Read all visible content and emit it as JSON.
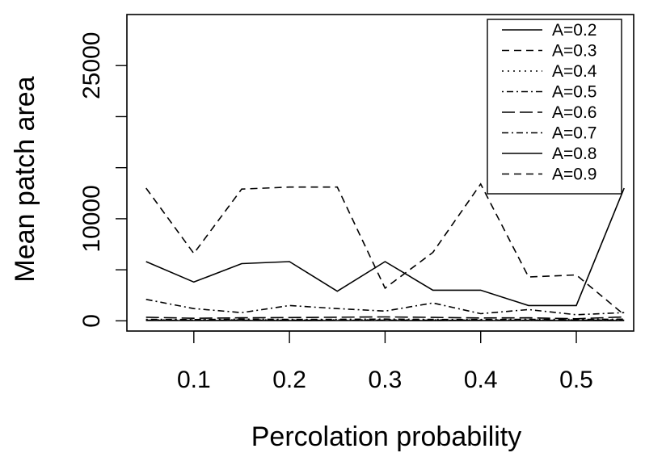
{
  "chart_data": {
    "type": "line",
    "xlabel": "Percolation probability",
    "ylabel": "Mean patch area",
    "x": [
      0.05,
      0.1,
      0.15,
      0.2,
      0.25,
      0.3,
      0.35,
      0.4,
      0.45,
      0.5,
      0.55
    ],
    "xlim": [
      0.03,
      0.56
    ],
    "ylim": [
      -1000,
      30000
    ],
    "xticks": [
      0.1,
      0.2,
      0.3,
      0.4,
      0.5
    ],
    "xtick_labels": [
      "0.1",
      "0.2",
      "0.3",
      "0.4",
      "0.5"
    ],
    "yticks": [
      0,
      5000,
      10000,
      15000,
      20000,
      25000
    ],
    "ytick_labels": [
      "0",
      "",
      "10000",
      "",
      "",
      "25000"
    ],
    "grid": false,
    "legend_position": "top-right",
    "series": [
      {
        "name": "A=0.2",
        "dash": "solid",
        "values": [
          30,
          25,
          35,
          20,
          25,
          30,
          20,
          25,
          30,
          20,
          25
        ]
      },
      {
        "name": "A=0.3",
        "dash": "dashed",
        "values": [
          60,
          50,
          70,
          60,
          55,
          65,
          60,
          50,
          55,
          60,
          70
        ]
      },
      {
        "name": "A=0.4",
        "dash": "dotted",
        "values": [
          90,
          80,
          100,
          85,
          95,
          100,
          90,
          80,
          85,
          90,
          100
        ]
      },
      {
        "name": "A=0.5",
        "dash": "dotdash",
        "values": [
          150,
          120,
          160,
          140,
          150,
          170,
          140,
          130,
          150,
          140,
          160
        ]
      },
      {
        "name": "A=0.6",
        "dash": "longdash",
        "values": [
          350,
          250,
          300,
          320,
          350,
          380,
          340,
          280,
          300,
          200,
          380
        ]
      },
      {
        "name": "A=0.7",
        "dash": "twodash",
        "values": [
          2100,
          1200,
          800,
          1500,
          1200,
          950,
          1750,
          700,
          1100,
          600,
          800
        ]
      },
      {
        "name": "A=0.8",
        "dash": "solid",
        "values": [
          5800,
          3800,
          5600,
          5800,
          2900,
          5800,
          3000,
          3000,
          1500,
          1500,
          13000
        ]
      },
      {
        "name": "A=0.9",
        "dash": "dashed",
        "values": [
          13000,
          6600,
          12900,
          13100,
          13100,
          3200,
          6700,
          13400,
          4300,
          4500,
          600
        ]
      }
    ]
  }
}
